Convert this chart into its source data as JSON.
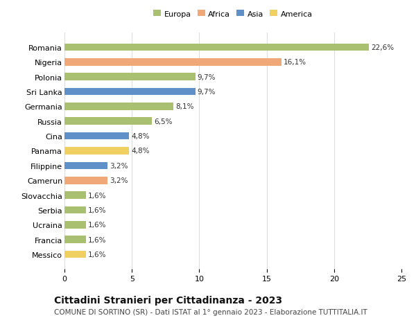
{
  "categories": [
    "Messico",
    "Francia",
    "Ucraina",
    "Serbia",
    "Slovacchia",
    "Camerun",
    "Filippine",
    "Panama",
    "Cina",
    "Russia",
    "Germania",
    "Sri Lanka",
    "Polonia",
    "Nigeria",
    "Romania"
  ],
  "values": [
    1.6,
    1.6,
    1.6,
    1.6,
    1.6,
    3.2,
    3.2,
    4.8,
    4.8,
    6.5,
    8.1,
    9.7,
    9.7,
    16.1,
    22.6
  ],
  "labels": [
    "1,6%",
    "1,6%",
    "1,6%",
    "1,6%",
    "1,6%",
    "3,2%",
    "3,2%",
    "4,8%",
    "4,8%",
    "6,5%",
    "8,1%",
    "9,7%",
    "9,7%",
    "16,1%",
    "22,6%"
  ],
  "colors": [
    "#f0d060",
    "#a8c070",
    "#a8c070",
    "#a8c070",
    "#a8c070",
    "#f0a878",
    "#6090c8",
    "#f0d060",
    "#6090c8",
    "#a8c070",
    "#a8c070",
    "#6090c8",
    "#a8c070",
    "#f0a878",
    "#a8c070"
  ],
  "legend": [
    {
      "label": "Europa",
      "color": "#a8c070"
    },
    {
      "label": "Africa",
      "color": "#f0a878"
    },
    {
      "label": "Asia",
      "color": "#6090c8"
    },
    {
      "label": "America",
      "color": "#f0d060"
    }
  ],
  "title": "Cittadini Stranieri per Cittadinanza - 2023",
  "subtitle": "COMUNE DI SORTINO (SR) - Dati ISTAT al 1° gennaio 2023 - Elaborazione TUTTITALIA.IT",
  "xlim": [
    0,
    25
  ],
  "xticks": [
    0,
    5,
    10,
    15,
    20,
    25
  ],
  "background_color": "#ffffff",
  "grid_color": "#dddddd",
  "bar_height": 0.5,
  "label_fontsize": 7.5,
  "tick_fontsize": 8,
  "title_fontsize": 10,
  "subtitle_fontsize": 7.5
}
